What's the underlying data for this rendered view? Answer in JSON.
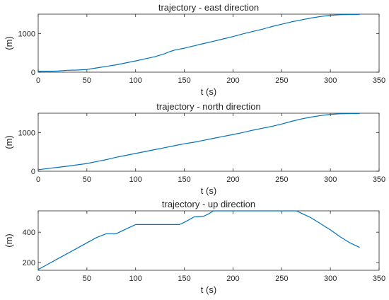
{
  "chart_data": [
    {
      "type": "line",
      "title": "trajectory - east direction",
      "xlabel": "t (s)",
      "ylabel": "(m)",
      "xlim": [
        0,
        350
      ],
      "ylim": [
        0,
        1500
      ],
      "xticks": [
        0,
        50,
        100,
        150,
        200,
        250,
        300,
        350
      ],
      "yticks": [
        0,
        1000
      ],
      "grid": false,
      "color": "#0072BD",
      "series": [
        {
          "x": [
            0,
            10,
            20,
            30,
            40,
            50,
            55,
            60,
            70,
            80,
            90,
            100,
            110,
            120,
            130,
            135,
            140,
            150,
            160,
            170,
            180,
            190,
            200,
            210,
            220,
            230,
            240,
            250,
            260,
            270,
            280,
            290,
            300,
            310,
            320,
            330
          ],
          "y": [
            20,
            20,
            30,
            50,
            55,
            70,
            90,
            110,
            150,
            190,
            240,
            290,
            345,
            400,
            480,
            530,
            570,
            620,
            680,
            740,
            800,
            860,
            920,
            990,
            1050,
            1110,
            1180,
            1240,
            1300,
            1350,
            1400,
            1440,
            1470,
            1485,
            1490,
            1490
          ]
        }
      ]
    },
    {
      "type": "line",
      "title": "trajectory - north direction",
      "xlabel": "t (s)",
      "ylabel": "(m)",
      "xlim": [
        0,
        350
      ],
      "ylim": [
        0,
        1500
      ],
      "xticks": [
        0,
        50,
        100,
        150,
        200,
        250,
        300,
        350
      ],
      "yticks": [
        0,
        1000
      ],
      "grid": false,
      "color": "#0072BD",
      "series": [
        {
          "x": [
            0,
            10,
            20,
            30,
            40,
            50,
            60,
            70,
            80,
            90,
            100,
            110,
            120,
            130,
            140,
            150,
            160,
            170,
            180,
            190,
            200,
            210,
            220,
            230,
            240,
            250,
            260,
            270,
            280,
            290,
            300,
            310,
            320,
            330
          ],
          "y": [
            40,
            70,
            100,
            130,
            165,
            200,
            250,
            300,
            360,
            410,
            460,
            510,
            560,
            610,
            660,
            710,
            750,
            800,
            850,
            900,
            950,
            1000,
            1060,
            1110,
            1160,
            1220,
            1290,
            1350,
            1400,
            1440,
            1470,
            1485,
            1490,
            1490
          ]
        }
      ]
    },
    {
      "type": "line",
      "title": "trajectory - up direction",
      "xlabel": "t (s)",
      "ylabel": "(m)",
      "xlim": [
        0,
        350
      ],
      "ylim": [
        150,
        540
      ],
      "xticks": [
        0,
        50,
        100,
        150,
        200,
        250,
        300,
        350
      ],
      "yticks": [
        200,
        400
      ],
      "grid": false,
      "color": "#0072BD",
      "series": [
        {
          "x": [
            0,
            10,
            20,
            30,
            40,
            50,
            60,
            70,
            80,
            90,
            100,
            110,
            120,
            130,
            140,
            145,
            150,
            160,
            170,
            175,
            180,
            185,
            190,
            200,
            210,
            220,
            230,
            240,
            250,
            260,
            265,
            270,
            280,
            290,
            300,
            310,
            320,
            330
          ],
          "y": [
            155,
            190,
            225,
            260,
            295,
            330,
            365,
            390,
            390,
            420,
            450,
            450,
            450,
            450,
            450,
            450,
            465,
            500,
            505,
            520,
            540,
            540,
            540,
            540,
            540,
            540,
            540,
            540,
            540,
            540,
            540,
            525,
            495,
            455,
            415,
            370,
            330,
            300
          ]
        }
      ]
    }
  ]
}
